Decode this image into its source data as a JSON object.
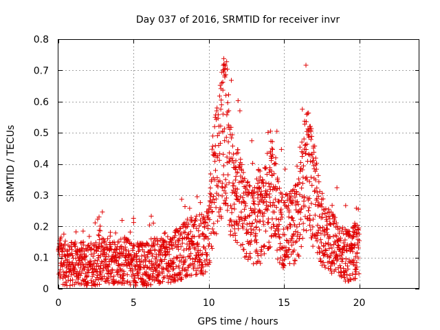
{
  "chart_data": {
    "type": "scatter",
    "title": "Day 037 of 2016, SRMTID for receiver invr",
    "xlabel": "GPS time / hours",
    "ylabel": "SRMTID / TECUs",
    "xlim": [
      0,
      24
    ],
    "ylim": [
      0,
      0.8
    ],
    "xticks": [
      0,
      5,
      10,
      15,
      20
    ],
    "yticks": [
      0,
      0.1,
      0.2,
      0.3,
      0.4,
      0.5,
      0.6,
      0.7,
      0.8
    ],
    "grid": true,
    "marker": "+",
    "color": "#e00000",
    "series": [
      {
        "name": "SRMTID",
        "profile_x": [
          0,
          0.5,
          1,
          1.5,
          2,
          2.5,
          3,
          3.5,
          4,
          4.5,
          5,
          5.5,
          6,
          6.5,
          7,
          7.5,
          8,
          8.5,
          9,
          9.5,
          10,
          10.3,
          10.6,
          10.9,
          11.1,
          11.3,
          11.6,
          12,
          12.5,
          13,
          13.5,
          14,
          14.3,
          14.6,
          15,
          15.5,
          16,
          16.3,
          16.6,
          16.9,
          17.2,
          17.5,
          18,
          18.5,
          19,
          19.3,
          19.6,
          20
        ],
        "profile_y": [
          0.1,
          0.08,
          0.08,
          0.08,
          0.08,
          0.08,
          0.09,
          0.09,
          0.09,
          0.09,
          0.08,
          0.08,
          0.08,
          0.09,
          0.1,
          0.1,
          0.11,
          0.13,
          0.14,
          0.14,
          0.17,
          0.33,
          0.4,
          0.48,
          0.55,
          0.42,
          0.32,
          0.28,
          0.22,
          0.2,
          0.21,
          0.3,
          0.32,
          0.22,
          0.18,
          0.2,
          0.22,
          0.35,
          0.38,
          0.3,
          0.25,
          0.19,
          0.16,
          0.13,
          0.11,
          0.1,
          0.12,
          0.12
        ],
        "peaks": [
          {
            "x": 11.0,
            "y": 0.72
          },
          {
            "x": 11.8,
            "y": 0.39
          },
          {
            "x": 13.3,
            "y": 0.38
          },
          {
            "x": 14.2,
            "y": 0.45
          },
          {
            "x": 16.7,
            "y": 0.52
          },
          {
            "x": 2.7,
            "y": 0.23
          },
          {
            "x": 19.7,
            "y": 0.21
          }
        ],
        "count": 2000
      }
    ]
  }
}
